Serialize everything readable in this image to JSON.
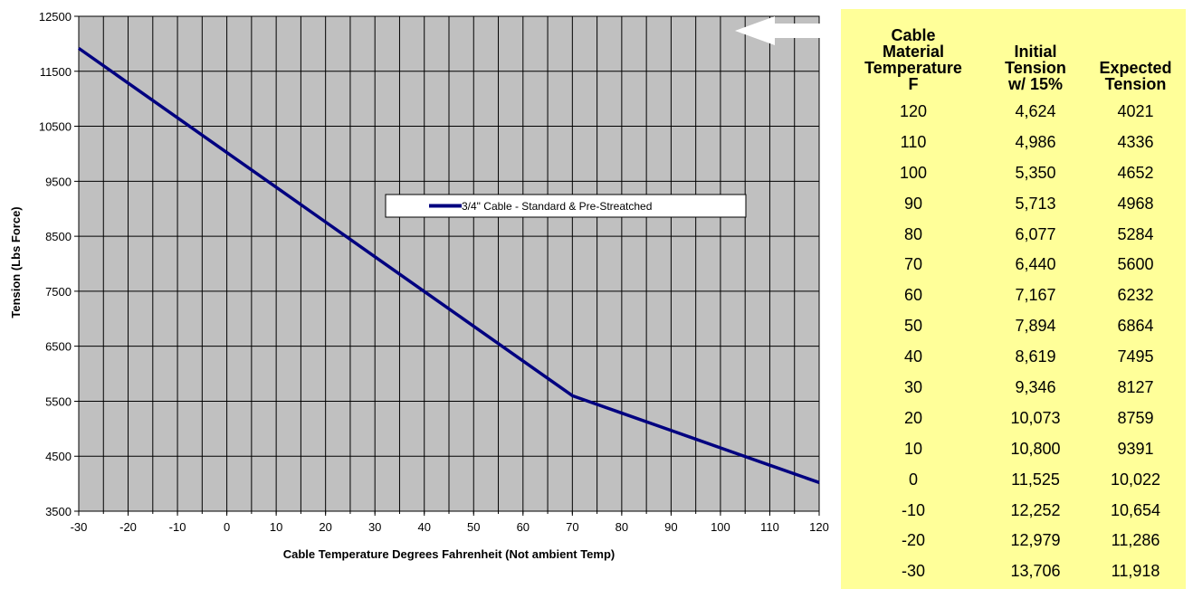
{
  "chart_data": {
    "type": "line",
    "x": [
      -30,
      -20,
      -10,
      0,
      10,
      20,
      30,
      40,
      50,
      60,
      70,
      80,
      90,
      100,
      110,
      120
    ],
    "series": [
      {
        "name": "3/4\" Cable - Standard & Pre-Streatched",
        "color": "#000080",
        "values": [
          11918,
          11286,
          10654,
          10022,
          9391,
          8759,
          8127,
          7495,
          6864,
          6232,
          5600,
          5284,
          4968,
          4652,
          4336,
          4021
        ]
      }
    ],
    "xlabel": "Cable Temperature Degrees Fahrenheit (Not ambient Temp)",
    "ylabel": "Tension (Lbs Force)",
    "xlim": [
      -30,
      120
    ],
    "ylim": [
      3500,
      12500
    ],
    "xticks": [
      "-30",
      "-20",
      "-10",
      "0",
      "10",
      "20",
      "30",
      "40",
      "50",
      "60",
      "70",
      "80",
      "90",
      "100",
      "110",
      "120"
    ],
    "yticks": [
      "3500",
      "4500",
      "5500",
      "6500",
      "7500",
      "8500",
      "9500",
      "10500",
      "11500",
      "12500"
    ],
    "x_minor_step": 5,
    "grid": true,
    "plot_background": "#c0c0c0",
    "legend_position": "center"
  },
  "table": {
    "headers": [
      [
        "Cable",
        "Material",
        "Temperature",
        "F"
      ],
      [
        "Initial",
        "Tension",
        "w/ 15%"
      ],
      [
        "Expected",
        "Tension"
      ]
    ],
    "rows": [
      [
        "120",
        "4,624",
        "4021"
      ],
      [
        "110",
        "4,986",
        "4336"
      ],
      [
        "100",
        "5,350",
        "4652"
      ],
      [
        "90",
        "5,713",
        "4968"
      ],
      [
        "80",
        "6,077",
        "5284"
      ],
      [
        "70",
        "6,440",
        "5600"
      ],
      [
        "60",
        "7,167",
        "6232"
      ],
      [
        "50",
        "7,894",
        "6864"
      ],
      [
        "40",
        "8,619",
        "7495"
      ],
      [
        "30",
        "9,346",
        "8127"
      ],
      [
        "20",
        "10,073",
        "8759"
      ],
      [
        "10",
        "10,800",
        "9391"
      ],
      [
        "0",
        "11,525",
        "10,022"
      ],
      [
        "-10",
        "12,252",
        "10,654"
      ],
      [
        "-20",
        "12,979",
        "11,286"
      ],
      [
        "-30",
        "13,706",
        "11,918"
      ]
    ],
    "background": "#ffff99"
  },
  "arrow": {
    "direction": "left",
    "color": "#ffffff"
  }
}
